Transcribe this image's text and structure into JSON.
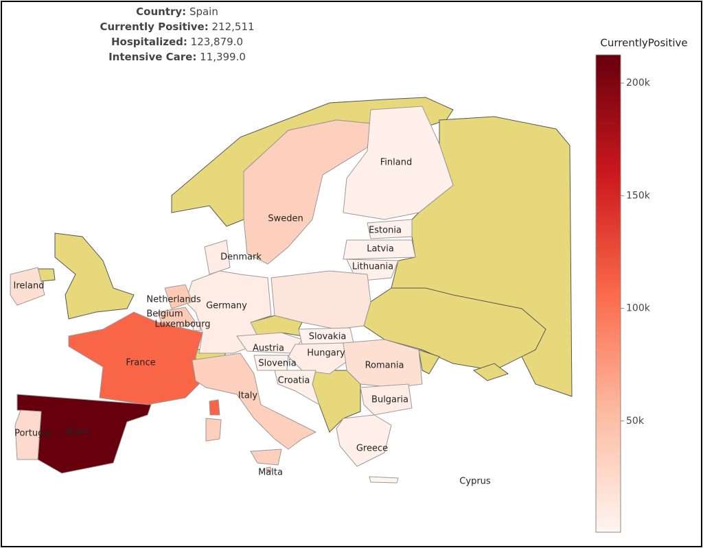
{
  "chart_data": {
    "type": "choropleth",
    "hover": {
      "labels": [
        "Country:",
        "Currently Positive:",
        "Hospitalized:",
        "Intensive Care:"
      ],
      "values": [
        "Spain",
        "212,511",
        "123,879.0",
        "11,399.0"
      ]
    },
    "colorbar_title": "CurrentlyPositive",
    "categories": [
      "Spain",
      "Portugal",
      "France",
      "Italy",
      "Malta",
      "Germany",
      "Netherlands",
      "Belgium",
      "Luxembourg",
      "Denmark",
      "Sweden",
      "Finland",
      "Estonia",
      "Latvia",
      "Lithuania",
      null,
      "Austria",
      "Slovakia",
      "Hungary",
      "Slovenia",
      "Croatia",
      "Romania",
      "Bulgaria",
      "Greece",
      "Cyprus",
      "Ireland"
    ],
    "values": [
      212511,
      25000,
      110000,
      35000,
      40000,
      8000,
      40000,
      40000,
      5000,
      8000,
      35000,
      5000,
      3000,
      3000,
      5000,
      15000,
      6000,
      4000,
      8000,
      4000,
      5000,
      20000,
      8000,
      6000,
      1000,
      20000
    ],
    "zlim": [
      600,
      212511
    ],
    "colorscale": [
      "#fff5f0",
      "#fcbba1",
      "#fb6a4a",
      "#cb181d",
      "#67000d"
    ],
    "ticks": [
      {
        "value": 50000,
        "label": "50k"
      },
      {
        "value": 100000,
        "label": "100k"
      },
      {
        "value": 150000,
        "label": "150k"
      },
      {
        "value": 200000,
        "label": "200k"
      }
    ]
  }
}
